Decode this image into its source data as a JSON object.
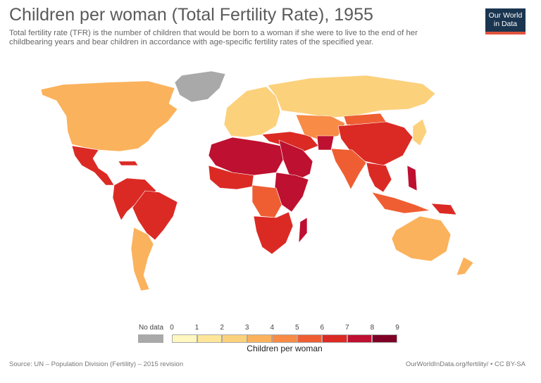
{
  "header": {
    "title": "Children per woman (Total Fertility Rate), 1955",
    "subtitle": "Total fertility rate (TFR) is the number of children that would be born to a woman if she were to live to the end of her childbearing years and bear children in accordance with age-specific fertility rates of the specified year.",
    "logo_line1": "Our World",
    "logo_line2": "in Data"
  },
  "legend": {
    "nodata_label": "No data",
    "title": "Children per woman",
    "ticks": [
      "0",
      "1",
      "2",
      "3",
      "4",
      "5",
      "6",
      "7",
      "8",
      "9"
    ],
    "colors": [
      "#fff7c0",
      "#fde69a",
      "#fcd17c",
      "#fbb25c",
      "#f88b45",
      "#ef5e32",
      "#db2a24",
      "#be1030",
      "#7f0026"
    ],
    "nodata_color": "#a9a9a9"
  },
  "regions": {
    "north_america": 3.5,
    "greenland": null,
    "mexico_central_america": 6.6,
    "caribbean": 6.0,
    "south_america_north": 6.5,
    "brazil": 6.1,
    "southern_cone": 3.2,
    "europe": 2.7,
    "russia": 2.8,
    "north_africa": 7.1,
    "west_africa": 6.5,
    "central_africa": 5.8,
    "east_africa": 7.0,
    "southern_africa": 6.4,
    "madagascar": 7.3,
    "middle_east": 7.2,
    "arabia": 7.2,
    "turkey_iran": 6.9,
    "central_asia": 4.3,
    "afghanistan": 7.4,
    "south_asia": 5.9,
    "china": 6.1,
    "mongolia": 5.8,
    "japan_korea": 2.2,
    "southeast_asia": 6.2,
    "indonesia": 5.5,
    "philippines": 7.4,
    "papua_new_guinea": 6.8,
    "australia": 3.3,
    "new_zealand": 3.9
  },
  "footer": {
    "source": "Source: UN – Population Division (Fertility) – 2015 revision",
    "credit": "OurWorldInData.org/fertility/ • CC BY-SA"
  }
}
